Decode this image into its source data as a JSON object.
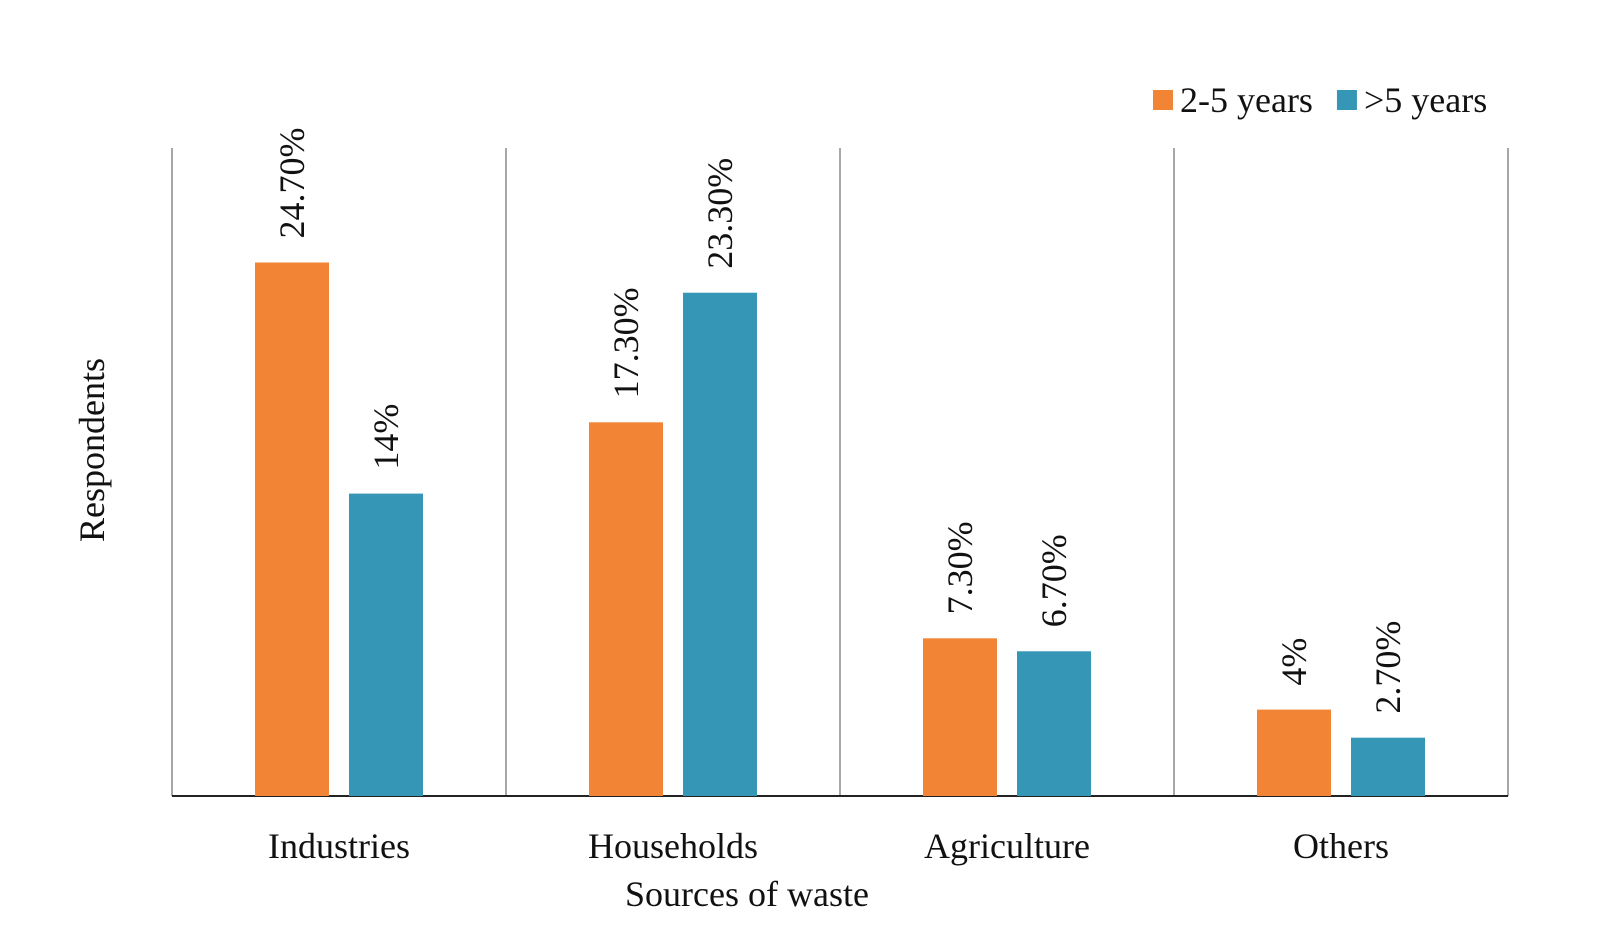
{
  "chart_data": {
    "type": "bar",
    "title": "",
    "xlabel": "Sources of waste",
    "ylabel": "Respondents",
    "categories": [
      "Industries",
      "Households",
      "Agriculture",
      "Others"
    ],
    "series": [
      {
        "name": "2-5 years",
        "color": "#F28535",
        "values": [
          24.7,
          17.3,
          7.3,
          4.0
        ],
        "labels": [
          "24.70%",
          "17.30%",
          "7.30%",
          "4%"
        ]
      },
      {
        "name": ">5 years",
        "color": "#3597B5",
        "values": [
          14.0,
          23.3,
          6.7,
          2.7
        ],
        "labels": [
          "14%",
          "23.30%",
          "6.70%",
          "2.70%"
        ]
      }
    ],
    "ylim": [
      0,
      30
    ],
    "grid": false,
    "legend": "top-right",
    "category_separators": true
  }
}
